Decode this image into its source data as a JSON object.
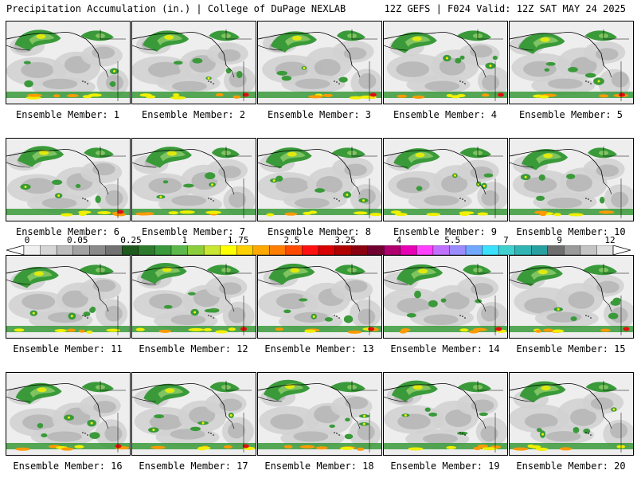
{
  "header": {
    "left": "Precipitation Accumulation (in.) | College of DuPage NEXLAB",
    "right": "12Z GEFS | F024 Valid: 12Z SAT MAY 24 2025"
  },
  "panels": [
    {
      "label": "Ensemble Member: 1"
    },
    {
      "label": "Ensemble Member: 2"
    },
    {
      "label": "Ensemble Member: 3"
    },
    {
      "label": "Ensemble Member: 4"
    },
    {
      "label": "Ensemble Member: 5"
    },
    {
      "label": "Ensemble Member: 6"
    },
    {
      "label": "Ensemble Member: 7"
    },
    {
      "label": "Ensemble Member: 8"
    },
    {
      "label": "Ensemble Member: 9"
    },
    {
      "label": "Ensemble Member: 10"
    },
    {
      "label": "Ensemble Member: 11"
    },
    {
      "label": "Ensemble Member: 12"
    },
    {
      "label": "Ensemble Member: 13"
    },
    {
      "label": "Ensemble Member: 14"
    },
    {
      "label": "Ensemble Member: 15"
    },
    {
      "label": "Ensemble Member: 16"
    },
    {
      "label": "Ensemble Member: 17"
    },
    {
      "label": "Ensemble Member: 18"
    },
    {
      "label": "Ensemble Member: 19"
    },
    {
      "label": "Ensemble Member: 20"
    }
  ],
  "colorbar": {
    "tick_labels": [
      "0",
      "0.05",
      "0.25",
      "1",
      "1.75",
      "2.5",
      "3.25",
      "4",
      "5.5",
      "7",
      "9",
      "12"
    ],
    "colors": [
      "#f0f0f0",
      "#d6d6d6",
      "#bcbcbc",
      "#a2a2a2",
      "#8a8a8a",
      "#727272",
      "#1e5a1e",
      "#2c7a2c",
      "#3a993a",
      "#5cb84a",
      "#8ccd3c",
      "#c8e632",
      "#ffff00",
      "#ffd000",
      "#ffa800",
      "#ff7e00",
      "#ff4a00",
      "#ff1010",
      "#d80000",
      "#b00000",
      "#8a0010",
      "#700030",
      "#b0006e",
      "#e800b4",
      "#ff40ff",
      "#c070ff",
      "#9a8cff",
      "#70a8ff",
      "#3ce0ff",
      "#40d0d0",
      "#30b4b4",
      "#28a0a0",
      "#6e6e6e",
      "#9a9a9a",
      "#c4c4c4",
      "#e0e0e0"
    ]
  },
  "map_colors": {
    "light": "#eeeeee",
    "mid": "#d2d2d2",
    "dark": "#a8a8a8",
    "green1": "#7fc460",
    "green2": "#3a9a3a",
    "green3": "#1e6e1e",
    "yellow": "#f0f000",
    "orange": "#ff9a00",
    "red": "#e01010"
  }
}
